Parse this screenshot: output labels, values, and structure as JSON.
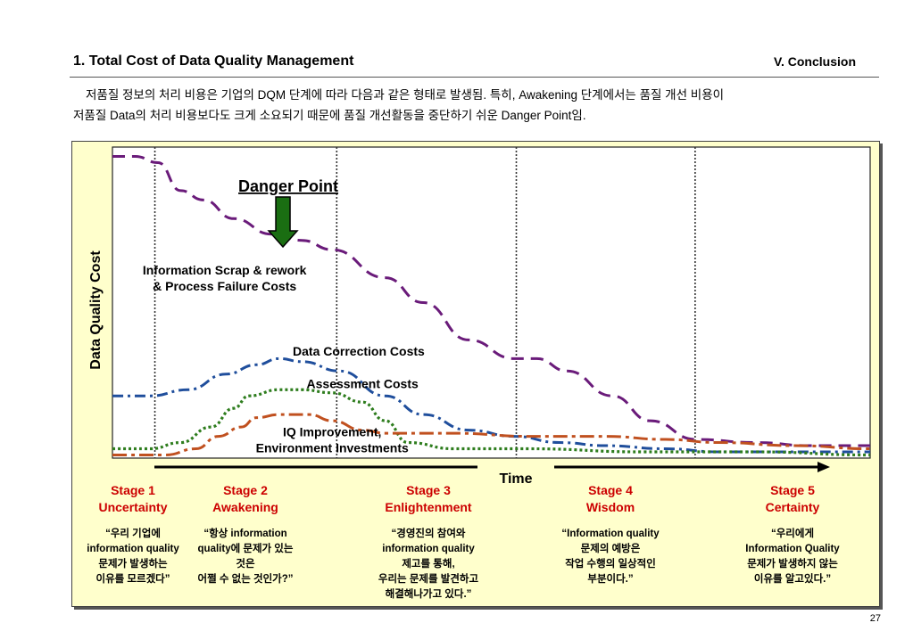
{
  "header": {
    "title": "1. Total Cost of Data Quality Management",
    "section": "V.  Conclusion"
  },
  "intro": {
    "line1": "저품질 정보의 처리 비용은 기업의 DQM 단계에 따라 다음과 같은 형태로 발생됨. 특히, Awakening 단계에서는 품질 개선 비용이",
    "line2": "저품질 Data의 처리 비용보다도 크게 소요되기 때문에 품질 개선활동을 중단하기 쉬운 Danger Point임."
  },
  "page_number": "27",
  "colors": {
    "scrap": "#6a1b7a",
    "correction": "#1f4e9c",
    "assessment": "#2e7d1e",
    "improvement": "#c0501f",
    "stage_label": "#cc0000",
    "arrow": "#1a6e12",
    "panel": "#ffffcc"
  },
  "chart_data": {
    "type": "line",
    "ylabel": "Data Quality Cost",
    "xlabel": "Time",
    "xlim": [
      0,
      100
    ],
    "ylim": [
      0,
      100
    ],
    "grid": false,
    "stage_dividers_x": [
      5.6,
      29.6,
      53.3,
      76.9
    ],
    "danger_point": {
      "label": "Danger Point",
      "x": 22.5
    },
    "series": [
      {
        "name": "Information Scrap & rework",
        "name2": "& Process Failure Costs",
        "label_x": 14.8,
        "label_y": 59,
        "points": [
          [
            0,
            97
          ],
          [
            3,
            97
          ],
          [
            6,
            95
          ],
          [
            9,
            86
          ],
          [
            12,
            83
          ],
          [
            16,
            77
          ],
          [
            21,
            72
          ],
          [
            25,
            70
          ],
          [
            29,
            67
          ],
          [
            36,
            58
          ],
          [
            41,
            50
          ],
          [
            47,
            38
          ],
          [
            53,
            32
          ],
          [
            56,
            32
          ],
          [
            60,
            28
          ],
          [
            66,
            20
          ],
          [
            71,
            12
          ],
          [
            77,
            6
          ],
          [
            85,
            5
          ],
          [
            92,
            4
          ],
          [
            100,
            4
          ]
        ]
      },
      {
        "name": "Data Correction Costs",
        "label_x": 32.5,
        "label_y": 33,
        "points": [
          [
            0,
            20
          ],
          [
            5,
            20
          ],
          [
            10,
            22
          ],
          [
            15,
            27
          ],
          [
            19,
            30
          ],
          [
            22,
            32
          ],
          [
            25,
            31
          ],
          [
            30,
            28
          ],
          [
            36,
            20
          ],
          [
            41,
            14
          ],
          [
            47,
            9
          ],
          [
            53,
            7
          ],
          [
            59,
            5
          ],
          [
            65,
            4
          ],
          [
            73,
            3
          ],
          [
            80,
            2
          ],
          [
            88,
            2
          ],
          [
            100,
            2
          ]
        ]
      },
      {
        "name": "Assessment Costs",
        "label_x": 33,
        "label_y": 22.5,
        "points": [
          [
            0,
            3
          ],
          [
            5,
            3
          ],
          [
            9,
            5
          ],
          [
            13,
            10
          ],
          [
            16,
            16
          ],
          [
            18,
            20
          ],
          [
            22,
            22
          ],
          [
            25,
            22
          ],
          [
            29,
            21
          ],
          [
            33,
            18
          ],
          [
            36,
            12
          ],
          [
            39,
            5
          ],
          [
            45,
            3
          ],
          [
            55,
            3
          ],
          [
            70,
            2
          ],
          [
            85,
            2
          ],
          [
            100,
            1
          ]
        ]
      },
      {
        "name": "IQ Improvement,",
        "name2": "Environment Investments",
        "label_x": 29,
        "label_y": 7,
        "points": [
          [
            0,
            1
          ],
          [
            7,
            1
          ],
          [
            11,
            3
          ],
          [
            14,
            7
          ],
          [
            17,
            10
          ],
          [
            19,
            13
          ],
          [
            22,
            14
          ],
          [
            26,
            14
          ],
          [
            29,
            12
          ],
          [
            33,
            9
          ],
          [
            36,
            8
          ],
          [
            45,
            8
          ],
          [
            55,
            7
          ],
          [
            65,
            7
          ],
          [
            73,
            6
          ],
          [
            80,
            5
          ],
          [
            90,
            4
          ],
          [
            100,
            3
          ]
        ]
      }
    ],
    "stages": [
      {
        "name": "Stage 1",
        "sub": "Uncertainty",
        "quote": [
          "“우리 기업에",
          "information quality",
          "문제가 발생하는",
          "이유를 모르겠다”"
        ]
      },
      {
        "name": "Stage 2",
        "sub": "Awakening",
        "quote": [
          "“항상 information",
          "quality에 문제가 있는",
          "것은",
          "어쩔 수 없는 것인가?”"
        ]
      },
      {
        "name": "Stage 3",
        "sub": "Enlightenment",
        "quote": [
          "“경영진의 참여와",
          "information quality",
          "제고를 통해,",
          "우리는 문제를 발견하고",
          "해결해나가고 있다.”"
        ]
      },
      {
        "name": "Stage 4",
        "sub": "Wisdom",
        "quote": [
          "“Information quality",
          "문제의 예방은",
          "작업 수행의 일상적인",
          "부분이다.”"
        ]
      },
      {
        "name": "Stage 5",
        "sub": "Certainty",
        "quote": [
          "“우리에게",
          "Information Quality",
          "문제가 발생하지 않는",
          "이유를 알고있다.”"
        ]
      }
    ]
  }
}
